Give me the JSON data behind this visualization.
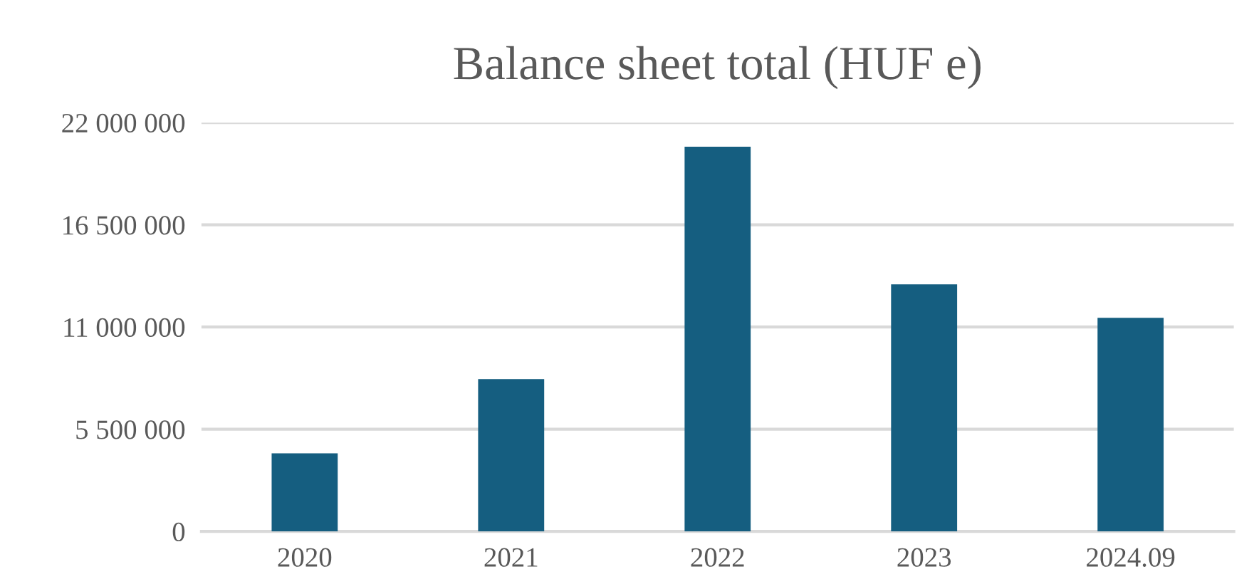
{
  "chart_data": {
    "type": "bar",
    "title": "Balance sheet total (HUF e)",
    "categories": [
      "2020",
      "2021",
      "2022",
      "2023",
      "2024.09"
    ],
    "values": [
      4200000,
      8200000,
      20700000,
      13300000,
      11500000
    ],
    "color": "#155e80",
    "ylim": [
      0,
      22000000
    ],
    "yticks": [
      0,
      {
        "value": 5500000,
        "label": "5 500 000"
      },
      {
        "value": 11000000,
        "label": "11 000 000"
      },
      {
        "value": 16500000,
        "label": "16 500 000"
      },
      {
        "value": 22000000,
        "label": "22 000 000"
      }
    ],
    "grid": "y",
    "legend": false
  }
}
